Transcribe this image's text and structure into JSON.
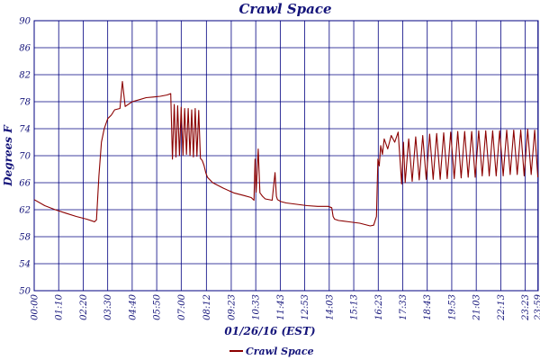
{
  "chart_data": {
    "type": "line",
    "title": "Crawl Space",
    "xlabel": "01/26/16 (EST)",
    "ylabel": "Degrees F",
    "ylim": [
      50,
      90
    ],
    "xlim_minutes": [
      0,
      1440
    ],
    "grid": true,
    "legend": "bottom-left",
    "y_ticks": [
      "50",
      "54",
      "58",
      "62",
      "66",
      "70",
      "74",
      "78",
      "82",
      "86",
      "90"
    ],
    "x_ticks": [
      "00:00",
      "01:10",
      "02:20",
      "03:30",
      "04:40",
      "05:50",
      "07:00",
      "08:12",
      "09:23",
      "10:33",
      "11:43",
      "12:53",
      "14:03",
      "15:13",
      "16:23",
      "17:33",
      "18:43",
      "19:53",
      "21:03",
      "22:13",
      "23:23",
      "23:59"
    ],
    "series": [
      {
        "name": "Crawl Space",
        "color": "#8b0000",
        "x": [
          "00:00",
          "00:30",
          "01:00",
          "01:30",
          "02:00",
          "02:30",
          "02:48",
          "02:52",
          "02:58",
          "03:05",
          "03:12",
          "03:20",
          "03:30",
          "03:40",
          "03:50",
          "04:05",
          "04:12",
          "04:20",
          "04:40",
          "05:00",
          "05:20",
          "05:40",
          "06:00",
          "06:20",
          "06:30",
          "06:35",
          "06:40",
          "06:45",
          "06:50",
          "06:55",
          "07:00",
          "07:05",
          "07:10",
          "07:15",
          "07:20",
          "07:25",
          "07:30",
          "07:35",
          "07:40",
          "07:45",
          "07:50",
          "07:55",
          "08:00",
          "08:05",
          "08:10",
          "08:15",
          "08:30",
          "09:00",
          "09:30",
          "10:00",
          "10:20",
          "10:28",
          "10:31",
          "10:34",
          "10:40",
          "10:45",
          "10:48",
          "10:52",
          "11:00",
          "11:20",
          "11:28",
          "11:32",
          "11:35",
          "11:45",
          "12:00",
          "12:30",
          "13:00",
          "13:30",
          "14:00",
          "14:10",
          "14:14",
          "14:18",
          "14:30",
          "15:00",
          "15:30",
          "16:00",
          "16:10",
          "16:18",
          "16:22",
          "16:26",
          "16:30",
          "16:35",
          "16:40",
          "16:50",
          "17:00",
          "17:10",
          "17:20",
          "17:30",
          "17:35",
          "17:40",
          "17:50",
          "18:00",
          "18:10",
          "18:20",
          "18:30",
          "18:40",
          "18:50",
          "19:00",
          "19:10",
          "19:20",
          "19:30",
          "19:40",
          "19:50",
          "20:00",
          "20:10",
          "20:20",
          "20:30",
          "20:40",
          "20:50",
          "21:00",
          "21:10",
          "21:20",
          "21:30",
          "21:40",
          "21:50",
          "22:00",
          "22:10",
          "22:20",
          "22:30",
          "22:40",
          "22:50",
          "23:00",
          "23:10",
          "23:20",
          "23:30",
          "23:40",
          "23:50",
          "23:59"
        ],
        "values": [
          63.5,
          62.6,
          62.0,
          61.5,
          61.0,
          60.6,
          60.3,
          60.2,
          60.5,
          67.0,
          72.0,
          74.0,
          75.5,
          76.0,
          76.8,
          77.0,
          81.0,
          77.3,
          78.0,
          78.3,
          78.6,
          78.7,
          78.8,
          79.0,
          79.2,
          69.5,
          77.6,
          69.8,
          77.4,
          70.0,
          77.2,
          70.1,
          77.0,
          70.2,
          77.0,
          70.0,
          76.8,
          69.8,
          77.0,
          69.9,
          76.7,
          69.6,
          69.3,
          68.6,
          67.5,
          66.8,
          66.0,
          65.2,
          64.5,
          64.1,
          63.8,
          63.4,
          69.5,
          64.6,
          71.0,
          64.5,
          64.3,
          64.0,
          63.6,
          63.4,
          67.5,
          64.0,
          63.5,
          63.2,
          63.0,
          62.8,
          62.6,
          62.5,
          62.5,
          62.3,
          61.0,
          60.6,
          60.4,
          60.2,
          60.0,
          59.6,
          59.7,
          61.0,
          69.5,
          68.5,
          71.5,
          70.2,
          72.5,
          71.0,
          73.0,
          72.0,
          73.5,
          65.8,
          72.0,
          66.0,
          72.5,
          66.2,
          72.8,
          66.4,
          73.0,
          66.5,
          73.2,
          66.5,
          73.3,
          66.5,
          73.4,
          66.6,
          73.5,
          66.6,
          73.6,
          66.7,
          73.6,
          66.8,
          73.6,
          66.8,
          73.7,
          67.0,
          73.7,
          67.0,
          73.7,
          67.0,
          73.7,
          67.0,
          73.8,
          67.2,
          73.8,
          67.2,
          73.8,
          67.0,
          73.9,
          67.2,
          73.8,
          66.8
        ]
      }
    ]
  }
}
